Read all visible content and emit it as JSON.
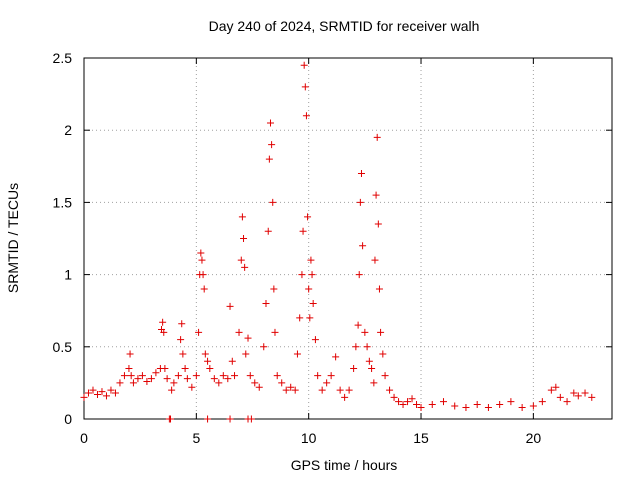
{
  "chart_data": {
    "type": "scatter",
    "title": "Day 240 of 2024, SRMTID for receiver walh",
    "xlabel": "GPS time / hours",
    "ylabel": "SRMTID / TECUs",
    "xlim": [
      0,
      23.5
    ],
    "ylim": [
      0,
      2.5
    ],
    "x_ticks": [
      0,
      5,
      10,
      15,
      20
    ],
    "x_tick_labels": [
      "0",
      "5",
      "10",
      "15",
      "20"
    ],
    "y_ticks": [
      0,
      0.5,
      1,
      1.5,
      2,
      2.5
    ],
    "y_tick_labels": [
      "0",
      "0.5",
      "1",
      "1.5",
      "2",
      "2.5"
    ],
    "grid": true,
    "legend": "none",
    "marker": "+",
    "color": "#e00000",
    "series": [
      {
        "name": "SRMTID",
        "x": [
          0.0,
          0.2,
          0.4,
          0.6,
          0.8,
          1.0,
          1.2,
          1.4,
          1.6,
          1.8,
          2.0,
          2.05,
          2.1,
          2.2,
          2.4,
          2.6,
          2.8,
          3.0,
          3.2,
          3.4,
          3.45,
          3.5,
          3.55,
          3.6,
          3.7,
          3.9,
          4.0,
          4.2,
          4.3,
          4.35,
          4.4,
          4.5,
          4.6,
          4.8,
          5.0,
          5.1,
          5.15,
          5.2,
          5.25,
          5.3,
          5.35,
          5.4,
          5.5,
          5.6,
          5.8,
          6.0,
          6.2,
          6.4,
          6.5,
          6.6,
          6.7,
          6.9,
          7.0,
          7.05,
          7.1,
          7.15,
          7.2,
          7.3,
          7.4,
          7.6,
          7.8,
          8.0,
          8.1,
          8.2,
          8.25,
          8.3,
          8.35,
          8.4,
          8.45,
          8.5,
          8.6,
          8.8,
          9.0,
          9.2,
          9.4,
          9.5,
          9.6,
          9.7,
          9.75,
          9.8,
          9.85,
          9.9,
          9.95,
          10.0,
          10.05,
          10.1,
          10.15,
          10.2,
          10.3,
          10.4,
          10.6,
          10.8,
          11.0,
          11.2,
          11.4,
          11.6,
          11.8,
          12.0,
          12.1,
          12.2,
          12.25,
          12.3,
          12.35,
          12.4,
          12.5,
          12.6,
          12.7,
          12.8,
          12.9,
          12.95,
          13.0,
          13.05,
          13.1,
          13.15,
          13.2,
          13.3,
          13.4,
          13.6,
          13.8,
          14.0,
          14.2,
          14.4,
          14.6,
          14.8,
          15.0,
          15.5,
          16.0,
          16.5,
          17.0,
          17.5,
          18.0,
          18.5,
          19.0,
          19.5,
          20.0,
          20.4,
          20.8,
          21.0,
          21.2,
          21.5,
          21.8,
          22.0,
          22.3,
          22.6,
          3.8,
          3.85,
          5.5,
          6.5,
          7.3,
          7.45
        ],
        "y": [
          0.15,
          0.18,
          0.2,
          0.17,
          0.19,
          0.16,
          0.2,
          0.18,
          0.25,
          0.3,
          0.35,
          0.45,
          0.3,
          0.25,
          0.28,
          0.3,
          0.26,
          0.28,
          0.32,
          0.35,
          0.62,
          0.67,
          0.6,
          0.35,
          0.28,
          0.2,
          0.25,
          0.3,
          0.55,
          0.66,
          0.45,
          0.35,
          0.28,
          0.22,
          0.3,
          0.6,
          1.0,
          1.15,
          1.1,
          1.0,
          0.9,
          0.45,
          0.4,
          0.35,
          0.28,
          0.25,
          0.3,
          0.28,
          0.78,
          0.4,
          0.3,
          0.6,
          1.1,
          1.4,
          1.25,
          1.05,
          0.45,
          0.56,
          0.3,
          0.25,
          0.22,
          0.5,
          0.8,
          1.3,
          1.8,
          2.05,
          1.9,
          1.5,
          0.9,
          0.6,
          0.3,
          0.25,
          0.2,
          0.22,
          0.2,
          0.45,
          0.7,
          1.0,
          1.3,
          2.45,
          2.3,
          2.1,
          1.4,
          0.9,
          0.7,
          1.1,
          1.0,
          0.8,
          0.55,
          0.3,
          0.2,
          0.25,
          0.3,
          0.43,
          0.2,
          0.15,
          0.2,
          0.35,
          0.5,
          0.65,
          1.0,
          1.5,
          1.7,
          1.2,
          0.6,
          0.5,
          0.4,
          0.35,
          0.25,
          1.1,
          1.55,
          1.95,
          1.35,
          0.9,
          0.6,
          0.45,
          0.3,
          0.2,
          0.15,
          0.12,
          0.1,
          0.12,
          0.14,
          0.1,
          0.08,
          0.1,
          0.12,
          0.09,
          0.08,
          0.1,
          0.08,
          0.1,
          0.12,
          0.08,
          0.09,
          0.12,
          0.2,
          0.22,
          0.15,
          0.12,
          0.18,
          0.16,
          0.18,
          0.15,
          0.0,
          0.0,
          0.0,
          0.0,
          0.0,
          0.0
        ]
      }
    ]
  }
}
